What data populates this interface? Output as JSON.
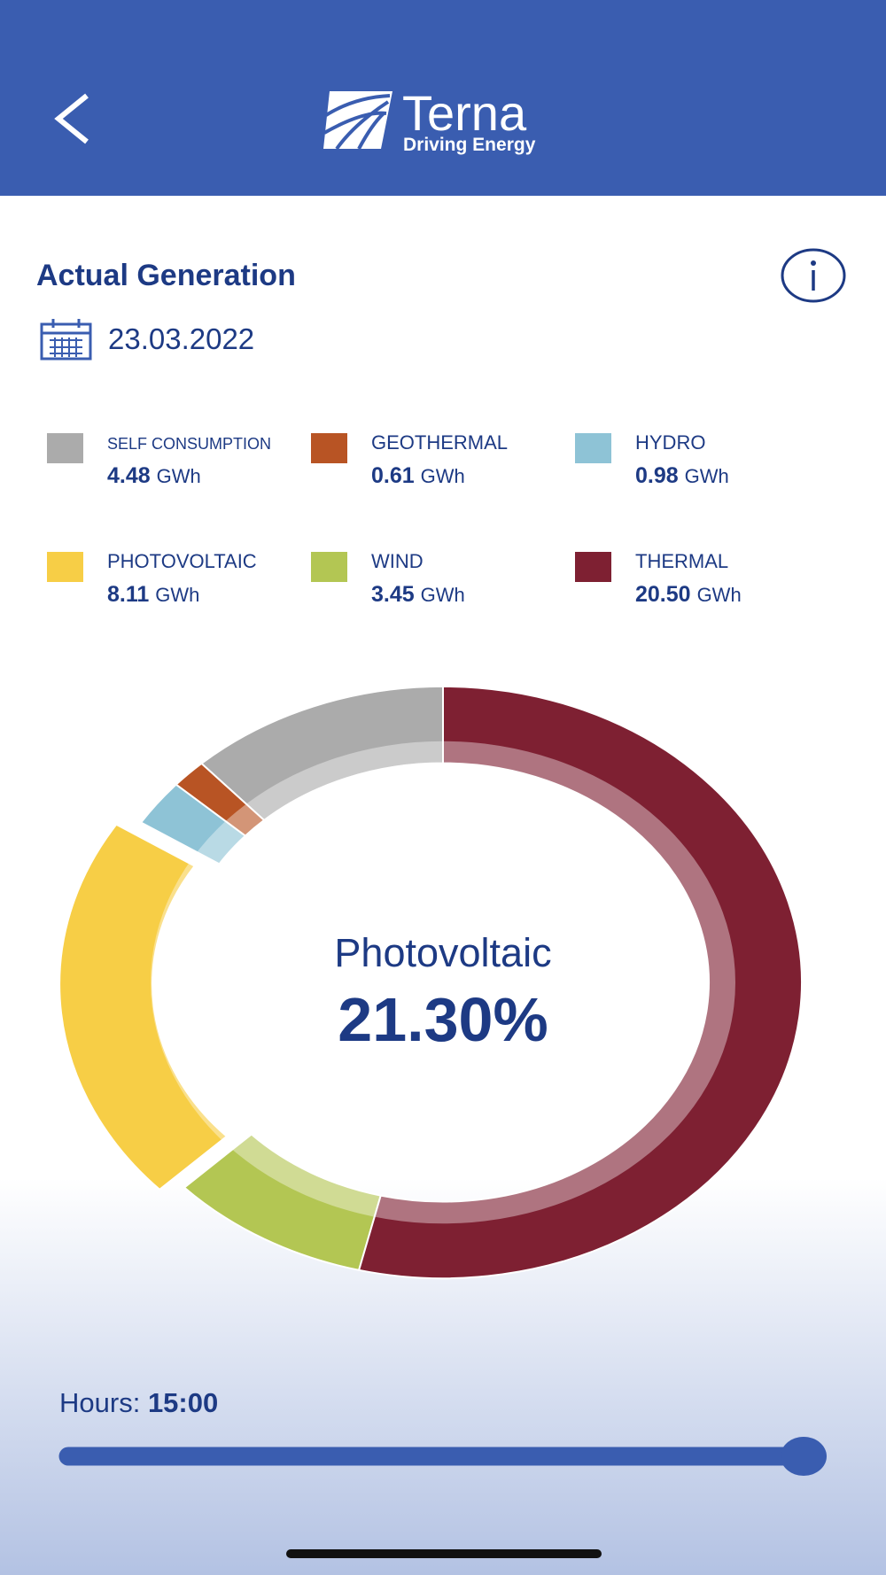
{
  "header": {
    "logo_name": "Terna",
    "logo_tagline": "Driving Energy"
  },
  "chart_data": {
    "type": "pie",
    "title": "Actual Generation",
    "date": "23.03.2022",
    "categories": [
      "SELF CONSUMPTION",
      "GEOTHERMAL",
      "HYDRO",
      "PHOTOVOLTAIC",
      "WIND",
      "THERMAL"
    ],
    "values": [
      4.48,
      0.61,
      0.98,
      8.11,
      3.45,
      20.5
    ],
    "value_labels": [
      "4.48",
      "0.61",
      "0.98",
      "8.11",
      "3.45",
      "20.50"
    ],
    "unit": "GWh",
    "colors": [
      "#ababab",
      "#b85424",
      "#8ec3d6",
      "#f7ce46",
      "#b3c653",
      "#7e2032"
    ],
    "donut": true,
    "direction": "counterclockwise",
    "exploded": "PHOTOVOLTAIC",
    "center_label": "Photovoltaic",
    "center_value": "21.30%"
  },
  "slider": {
    "label": "Hours:",
    "value": "15:00"
  }
}
